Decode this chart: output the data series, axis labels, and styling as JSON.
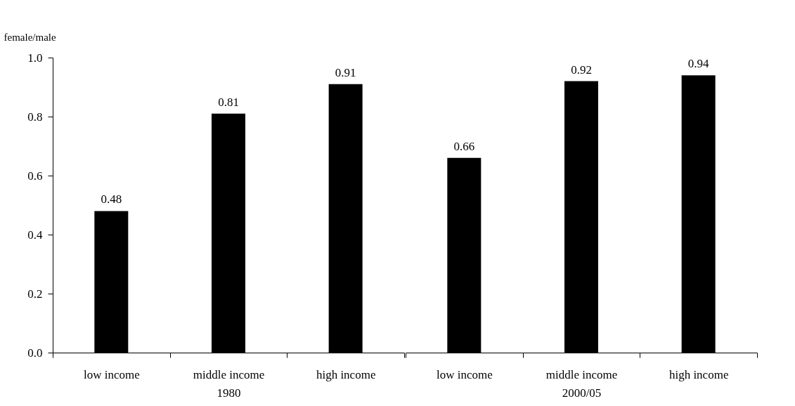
{
  "chart_data": [
    {
      "type": "bar",
      "ylabel": "female/male",
      "xlabel": "1980",
      "categories": [
        "low income",
        "middle income",
        "high income"
      ],
      "values": [
        0.48,
        0.81,
        0.91
      ],
      "color": "#000000",
      "data_labels": true,
      "ylim": [
        0,
        1
      ],
      "yticks": [
        {
          "value": 0,
          "label": "0.0"
        },
        0.2,
        0.4,
        0.6,
        0.8,
        {
          "value": 1,
          "label": "1.0"
        }
      ]
    },
    {
      "type": "bar",
      "xlabel": "2000/05",
      "categories": [
        "low income",
        "middle income",
        "high income"
      ],
      "values": [
        0.66,
        0.92,
        0.94
      ],
      "color": "#000000",
      "data_labels": true,
      "ylim": [
        0,
        1
      ],
      "tick_labels": "x"
    }
  ]
}
